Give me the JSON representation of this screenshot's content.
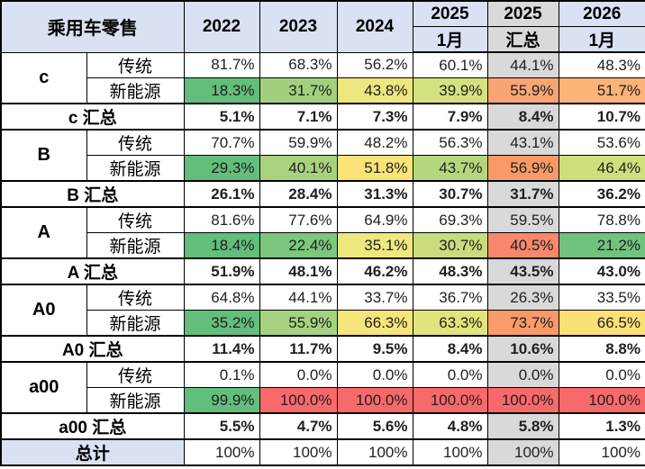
{
  "meta": {
    "header_bg": "#D9E1F2",
    "highlight_column_bg": "#D9D9D9",
    "scale_green": "#63BE7B",
    "scale_yellow": "#FFEB84",
    "scale_red": "#F8696B",
    "grid_color": "#000000"
  },
  "header": {
    "title": "乘用车零售",
    "columns": [
      {
        "year": "2022",
        "sub": "",
        "highlight": false
      },
      {
        "year": "2023",
        "sub": "",
        "highlight": false
      },
      {
        "year": "2024",
        "sub": "",
        "highlight": false
      },
      {
        "year": "2025",
        "sub": "1月",
        "highlight": false
      },
      {
        "year": "2025",
        "sub": "汇总",
        "highlight": true
      },
      {
        "year": "2026",
        "sub": "1月",
        "highlight": false
      }
    ]
  },
  "blocks": [
    {
      "segment": "c",
      "traditional": {
        "label": "传统",
        "values": [
          "81.7%",
          "68.3%",
          "56.2%",
          "60.1%",
          "44.1%",
          "48.3%"
        ]
      },
      "nev": {
        "label": "新能源",
        "values": [
          "18.3%",
          "31.7%",
          "43.8%",
          "39.9%",
          "55.9%",
          "51.7%"
        ],
        "colors": [
          "#63BE7B",
          "#A2D07E",
          "#EDE77F",
          "#D5E17E",
          "#F8A573",
          "#FBB377"
        ]
      },
      "subtotal": {
        "label": "c 汇总",
        "values": [
          "5.1%",
          "7.1%",
          "7.3%",
          "7.9%",
          "8.4%",
          "10.7%"
        ]
      }
    },
    {
      "segment": "B",
      "traditional": {
        "label": "传统",
        "values": [
          "70.7%",
          "59.9%",
          "48.2%",
          "56.3%",
          "43.1%",
          "53.6%"
        ]
      },
      "nev": {
        "label": "新能源",
        "values": [
          "29.3%",
          "40.1%",
          "51.8%",
          "43.7%",
          "56.9%",
          "46.4%"
        ],
        "colors": [
          "#63BE7B",
          "#A8D27E",
          "#FAE477",
          "#B5D67E",
          "#F89A66",
          "#CFDF7C"
        ]
      },
      "subtotal": {
        "label": "B 汇总",
        "values": [
          "26.1%",
          "28.4%",
          "31.3%",
          "30.7%",
          "31.7%",
          "36.2%"
        ]
      }
    },
    {
      "segment": "A",
      "traditional": {
        "label": "传统",
        "values": [
          "81.6%",
          "77.6%",
          "64.9%",
          "69.3%",
          "59.5%",
          "78.8%"
        ]
      },
      "nev": {
        "label": "新能源",
        "values": [
          "18.4%",
          "22.4%",
          "35.1%",
          "30.7%",
          "40.5%",
          "21.2%"
        ],
        "colors": [
          "#63BE7B",
          "#7CC77D",
          "#EEE87F",
          "#C8DC7E",
          "#F8886D",
          "#70C37C"
        ]
      },
      "subtotal": {
        "label": "A 汇总",
        "values": [
          "51.9%",
          "48.1%",
          "46.2%",
          "48.3%",
          "43.5%",
          "43.0%"
        ]
      }
    },
    {
      "segment": "A0",
      "traditional": {
        "label": "传统",
        "values": [
          "64.8%",
          "44.1%",
          "33.7%",
          "36.7%",
          "26.3%",
          "33.5%"
        ]
      },
      "nev": {
        "label": "新能源",
        "values": [
          "35.2%",
          "55.9%",
          "66.3%",
          "63.3%",
          "73.7%",
          "66.5%"
        ],
        "colors": [
          "#63BE7B",
          "#A5D27F",
          "#F6E57A",
          "#E2E47C",
          "#F89B68",
          "#FBE076"
        ]
      },
      "subtotal": {
        "label": "A0 汇总",
        "values": [
          "11.4%",
          "11.7%",
          "9.5%",
          "8.4%",
          "10.6%",
          "8.8%"
        ]
      }
    },
    {
      "segment": "a00",
      "traditional": {
        "label": "传统",
        "values": [
          "0.1%",
          "0.0%",
          "0.0%",
          "0.0%",
          "0.0%",
          "0.0%"
        ]
      },
      "nev": {
        "label": "新能源",
        "values": [
          "99.9%",
          "100.0%",
          "100.0%",
          "100.0%",
          "100.0%",
          "100.0%"
        ],
        "colors": [
          "#63BE7B",
          "#F8696B",
          "#F8696B",
          "#F8696B",
          "#F8696B",
          "#F8696B"
        ]
      },
      "subtotal": {
        "label": "a00 汇总",
        "values": [
          "5.5%",
          "4.7%",
          "5.6%",
          "4.8%",
          "5.8%",
          "1.3%"
        ]
      }
    }
  ],
  "grand_total": {
    "label": "总计",
    "values": [
      "100%",
      "100%",
      "100%",
      "100%",
      "100%",
      "100%"
    ]
  },
  "chart_data": {
    "type": "table",
    "title": "乘用车零售",
    "columns": [
      "2022",
      "2023",
      "2024",
      "2025 1月",
      "2025 汇总",
      "2026 1月"
    ],
    "highlighted_column": "2025 汇总",
    "rows": [
      {
        "group": "c",
        "label": "传统",
        "values": [
          81.7,
          68.3,
          56.2,
          60.1,
          44.1,
          48.3
        ]
      },
      {
        "group": "c",
        "label": "新能源",
        "values": [
          18.3,
          31.7,
          43.8,
          39.9,
          55.9,
          51.7
        ]
      },
      {
        "group": "c",
        "label": "c 汇总",
        "values": [
          5.1,
          7.1,
          7.3,
          7.9,
          8.4,
          10.7
        ]
      },
      {
        "group": "B",
        "label": "传统",
        "values": [
          70.7,
          59.9,
          48.2,
          56.3,
          43.1,
          53.6
        ]
      },
      {
        "group": "B",
        "label": "新能源",
        "values": [
          29.3,
          40.1,
          51.8,
          43.7,
          56.9,
          46.4
        ]
      },
      {
        "group": "B",
        "label": "B 汇总",
        "values": [
          26.1,
          28.4,
          31.3,
          30.7,
          31.7,
          36.2
        ]
      },
      {
        "group": "A",
        "label": "传统",
        "values": [
          81.6,
          77.6,
          64.9,
          69.3,
          59.5,
          78.8
        ]
      },
      {
        "group": "A",
        "label": "新能源",
        "values": [
          18.4,
          22.4,
          35.1,
          30.7,
          40.5,
          21.2
        ]
      },
      {
        "group": "A",
        "label": "A 汇总",
        "values": [
          51.9,
          48.1,
          46.2,
          48.3,
          43.5,
          43.0
        ]
      },
      {
        "group": "A0",
        "label": "传统",
        "values": [
          64.8,
          44.1,
          33.7,
          36.7,
          26.3,
          33.5
        ]
      },
      {
        "group": "A0",
        "label": "新能源",
        "values": [
          35.2,
          55.9,
          66.3,
          63.3,
          73.7,
          66.5
        ]
      },
      {
        "group": "A0",
        "label": "A0 汇总",
        "values": [
          11.4,
          11.7,
          9.5,
          8.4,
          10.6,
          8.8
        ]
      },
      {
        "group": "a00",
        "label": "传统",
        "values": [
          0.1,
          0.0,
          0.0,
          0.0,
          0.0,
          0.0
        ]
      },
      {
        "group": "a00",
        "label": "新能源",
        "values": [
          99.9,
          100.0,
          100.0,
          100.0,
          100.0,
          100.0
        ]
      },
      {
        "group": "a00",
        "label": "a00 汇总",
        "values": [
          5.5,
          4.7,
          5.6,
          4.8,
          5.8,
          1.3
        ]
      },
      {
        "group": "总计",
        "label": "总计",
        "values": [
          100,
          100,
          100,
          100,
          100,
          100
        ]
      }
    ],
    "units": "%",
    "notes": "新能源 rows use a green-yellow-red color scale; 2025 汇总 column shaded gray"
  }
}
